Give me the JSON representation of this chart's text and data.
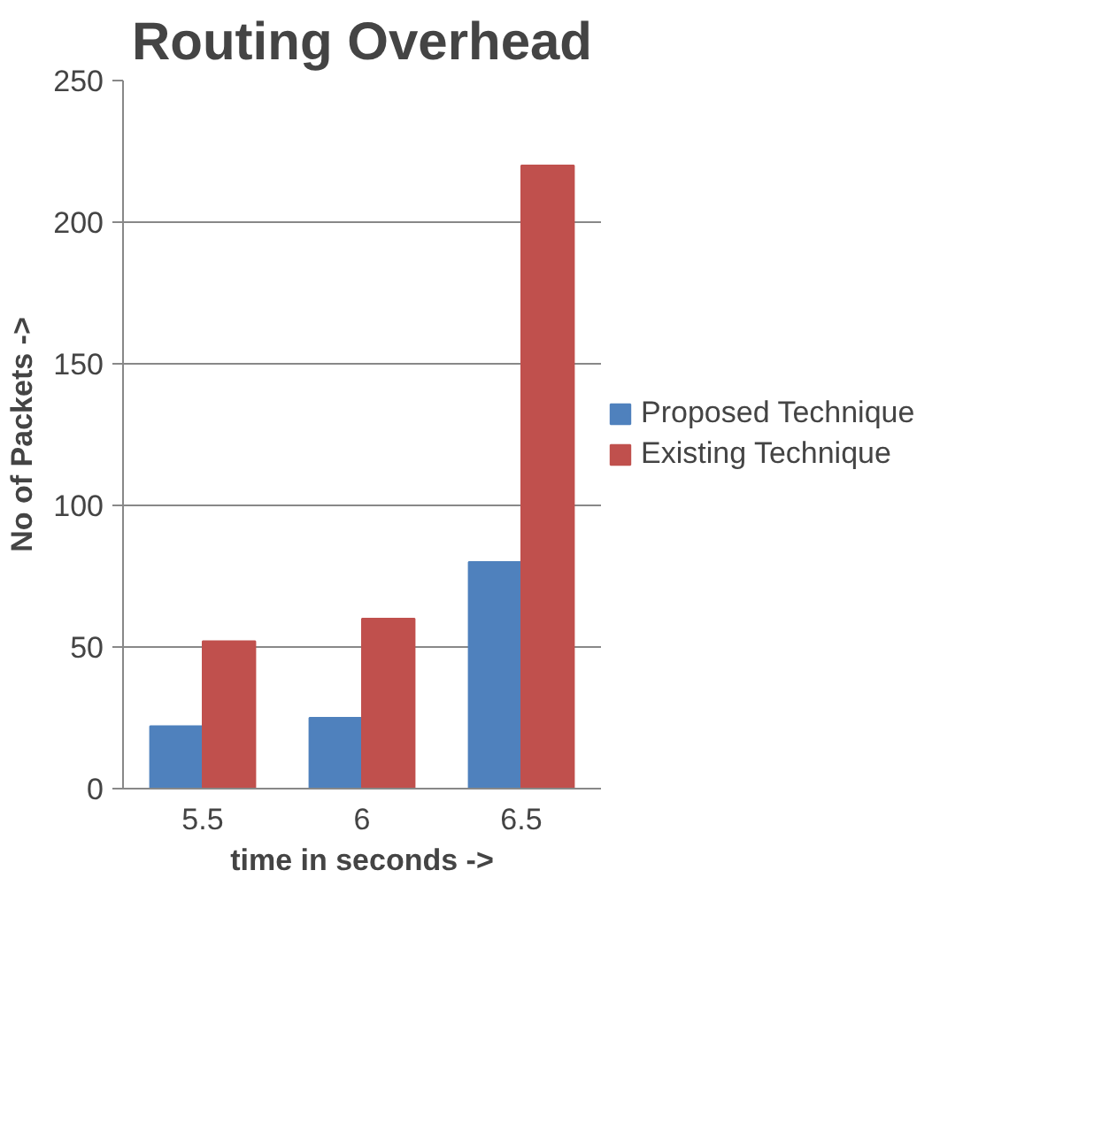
{
  "chart_data": {
    "type": "bar",
    "title": "Routing Overhead",
    "xlabel": "time in seconds ->",
    "ylabel": "No of Packets ->",
    "categories": [
      "5.5",
      "6",
      "6.5"
    ],
    "series": [
      {
        "name": "Proposed Technique",
        "color": "#4f81bd",
        "values": [
          22,
          25,
          80
        ]
      },
      {
        "name": "Existing Technique",
        "color": "#c0504d",
        "values": [
          52,
          60,
          220
        ]
      }
    ],
    "ylim": [
      0,
      250
    ],
    "yticks": [
      0,
      50,
      100,
      150,
      200,
      250
    ],
    "grid": "y",
    "legend": "right"
  }
}
